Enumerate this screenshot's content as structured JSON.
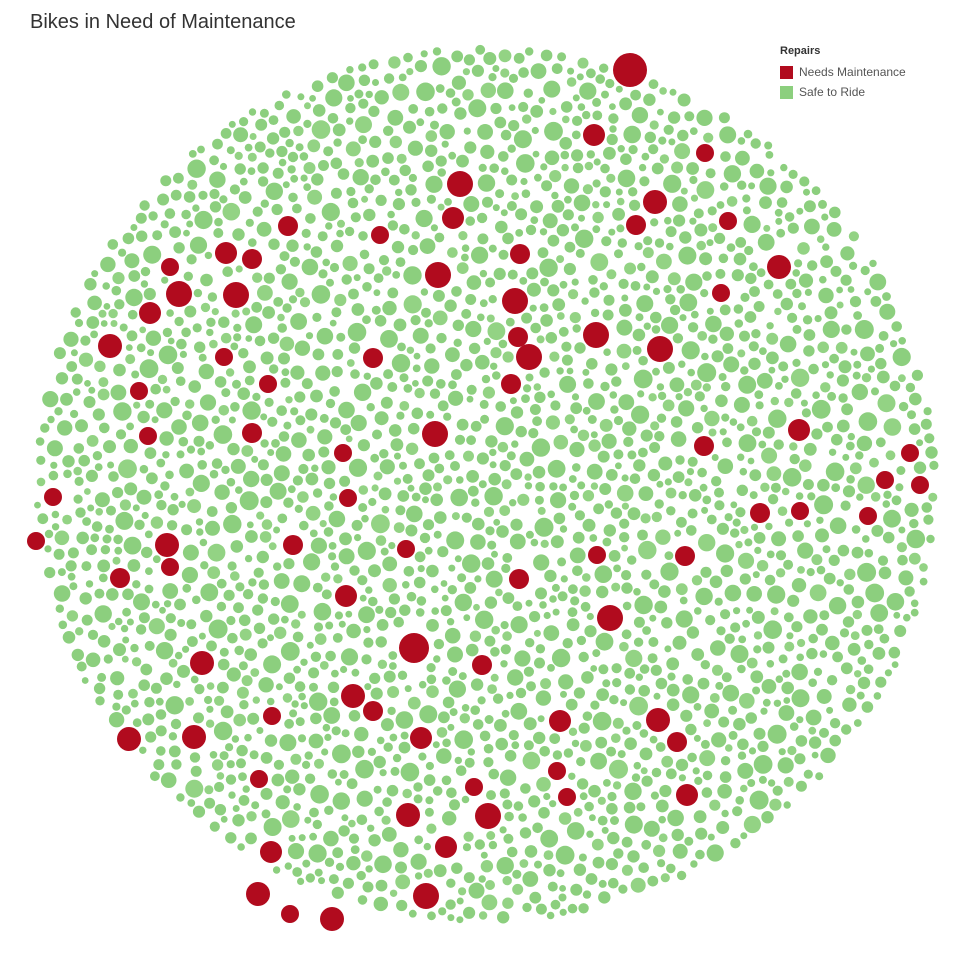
{
  "chart_data": {
    "type": "packed-bubble",
    "title": "Bikes in Need of Maintenance",
    "legend": {
      "title": "Repairs",
      "placement": "top-right",
      "items": [
        {
          "label": "Needs Maintenance",
          "color": "#b10b1e"
        },
        {
          "label": "Safe to Ride",
          "color": "#8ccf7e"
        }
      ]
    },
    "categories": [
      "Needs Maintenance",
      "Safe to Ride"
    ]
  }
}
